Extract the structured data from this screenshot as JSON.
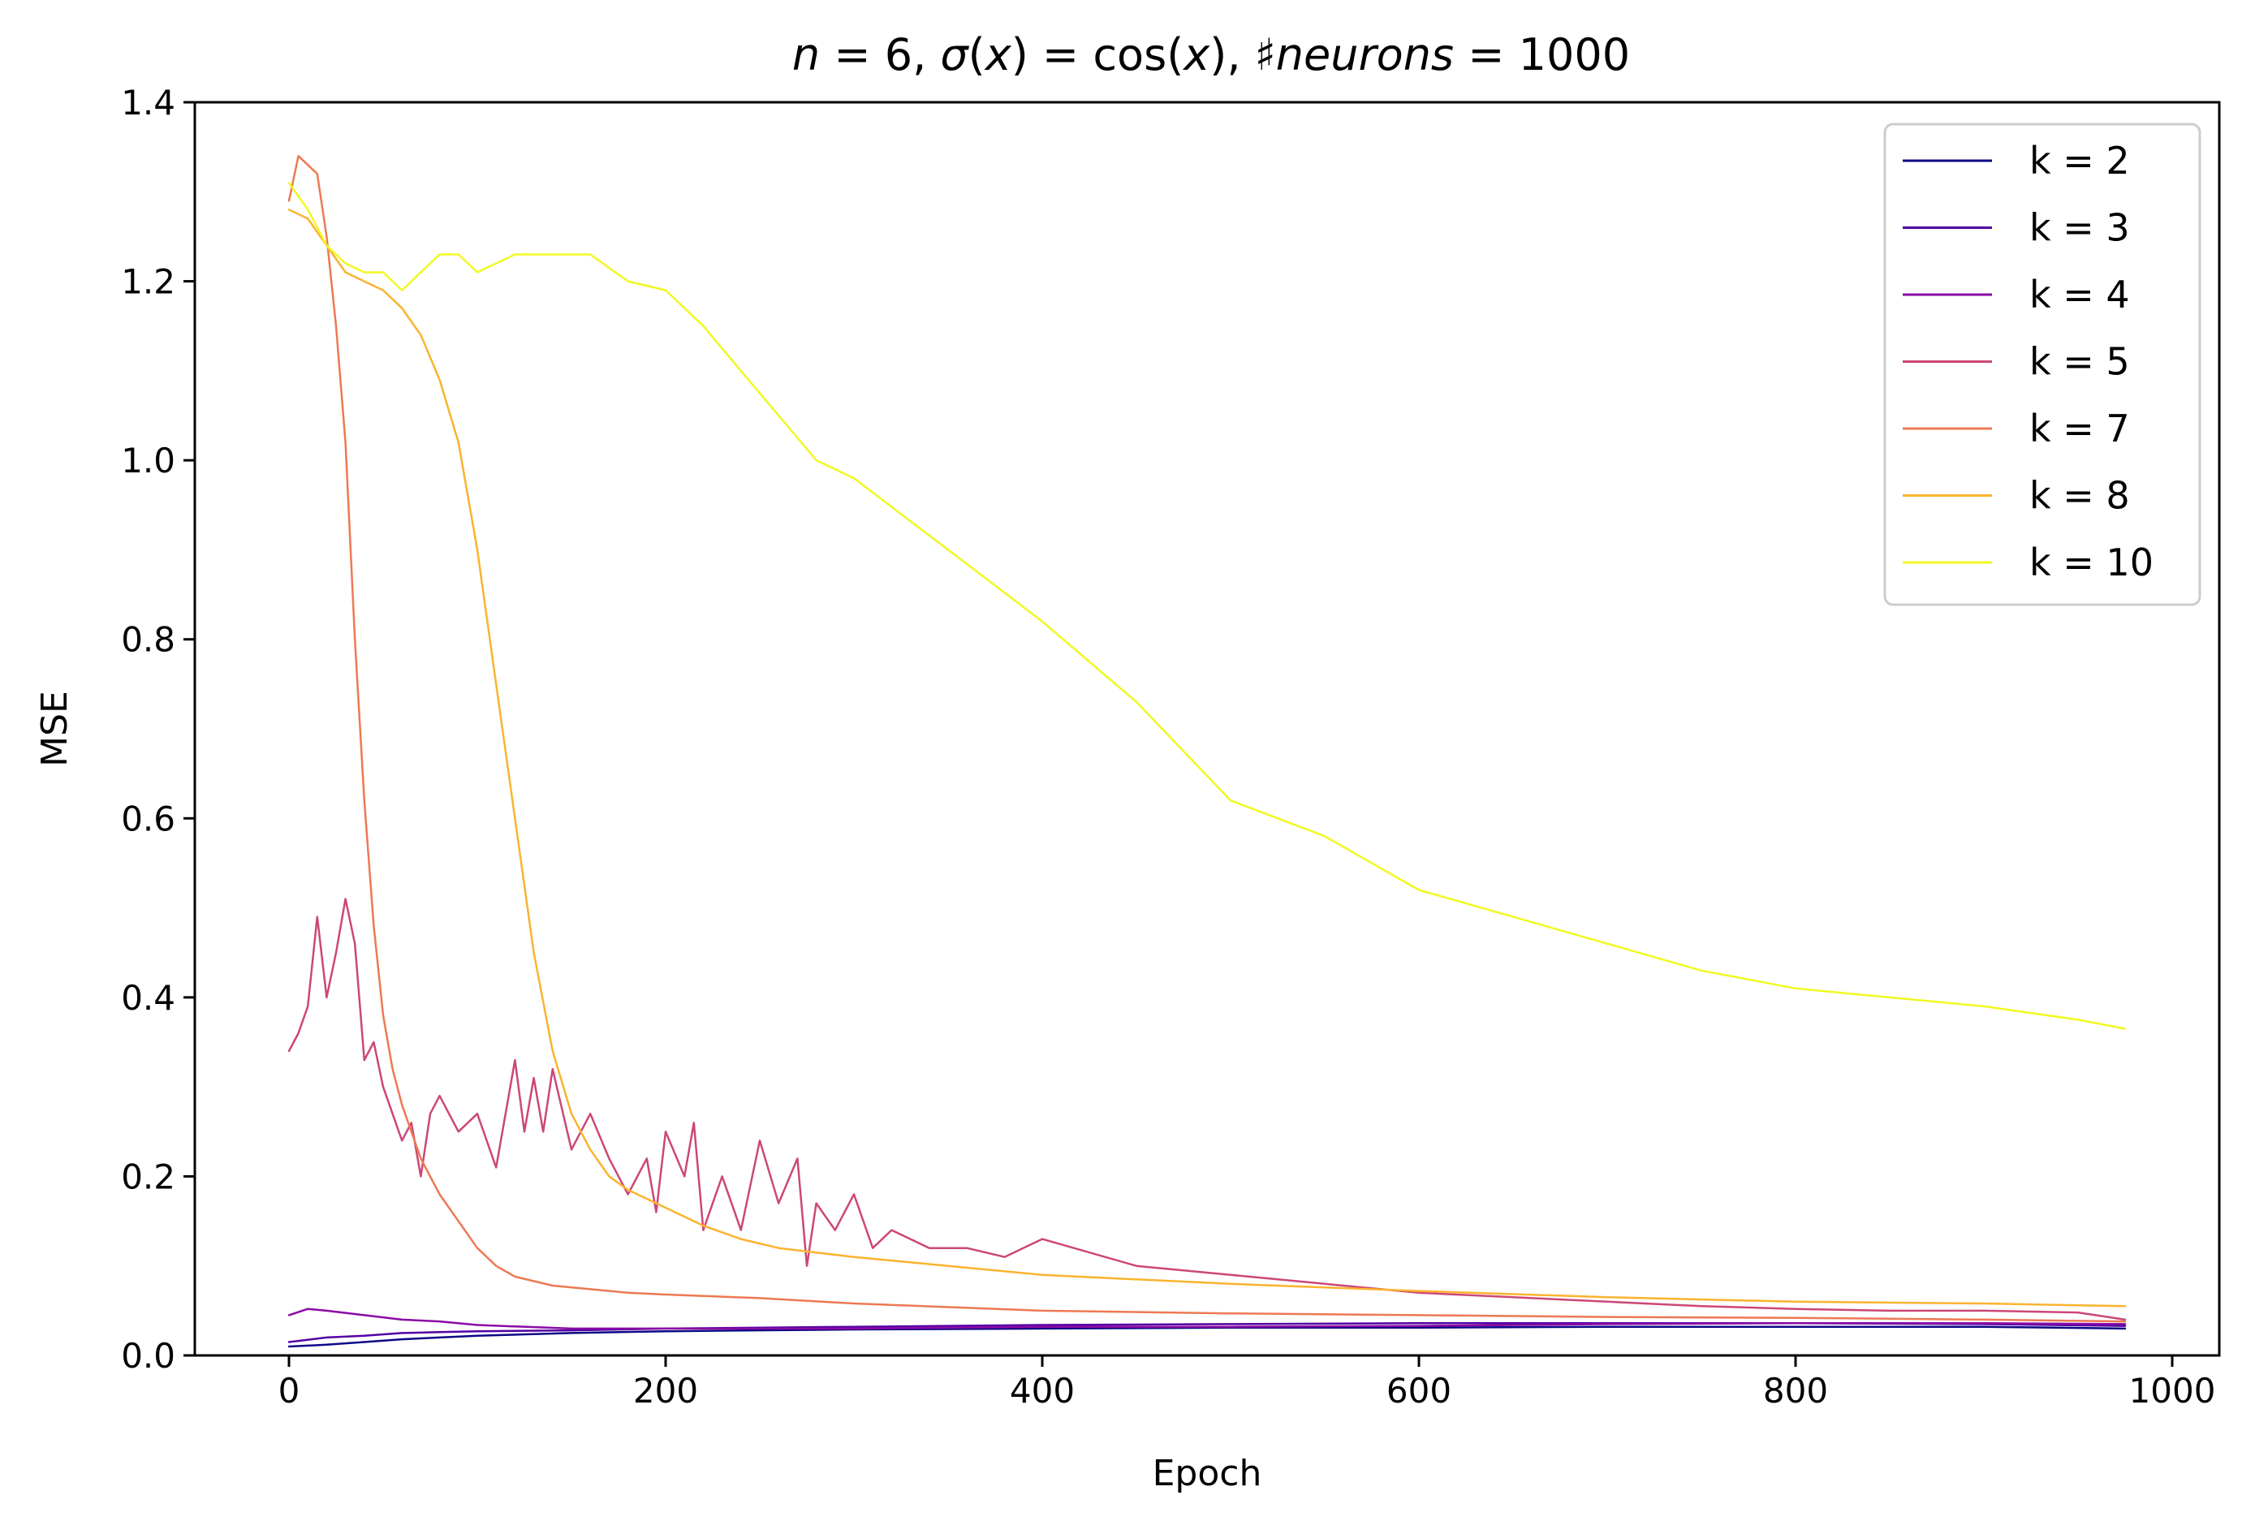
{
  "chart_data": {
    "type": "line",
    "title": "n = 6, σ(x) = cos(x), ♯neurons = 1000",
    "title_parts": {
      "n_var": "n",
      "n_eq": " = 6, ",
      "sigma": "σ",
      "x_open": "(",
      "x_var": "x",
      "x_mid": ") = cos(",
      "x_var2": "x",
      "x_close": "), ♯",
      "neurons_var": "neurons",
      "neurons_eq": " = 1000"
    },
    "xlabel": "Epoch",
    "ylabel": "MSE",
    "xlim": [
      -50,
      1025
    ],
    "ylim": [
      0.0,
      1.4
    ],
    "x_ticks": [
      0,
      200,
      400,
      600,
      800,
      1000
    ],
    "y_ticks": [
      0.0,
      0.2,
      0.4,
      0.6,
      0.8,
      1.0,
      1.2,
      1.4
    ],
    "x_tick_labels": [
      "0",
      "200",
      "400",
      "600",
      "800",
      "1000"
    ],
    "y_tick_labels": [
      "0.0",
      "0.2",
      "0.4",
      "0.6",
      "0.8",
      "1.0",
      "1.2",
      "1.4"
    ],
    "grid": false,
    "legend_position": "top-right",
    "series": [
      {
        "name": "k = 2",
        "color": "#0d0887",
        "x": [
          0,
          20,
          40,
          60,
          80,
          100,
          150,
          200,
          300,
          400,
          500,
          600,
          700,
          800,
          900,
          975
        ],
        "y": [
          0.01,
          0.012,
          0.015,
          0.018,
          0.02,
          0.022,
          0.025,
          0.027,
          0.029,
          0.03,
          0.031,
          0.031,
          0.032,
          0.032,
          0.032,
          0.03
        ]
      },
      {
        "name": "k = 3",
        "color": "#5302a3",
        "x": [
          0,
          20,
          40,
          60,
          80,
          100,
          150,
          200,
          300,
          400,
          500,
          600,
          700,
          800,
          900,
          975
        ],
        "y": [
          0.015,
          0.02,
          0.022,
          0.025,
          0.026,
          0.027,
          0.028,
          0.03,
          0.032,
          0.034,
          0.035,
          0.036,
          0.036,
          0.036,
          0.035,
          0.033
        ]
      },
      {
        "name": "k = 4",
        "color": "#8b0aa5",
        "x": [
          0,
          10,
          20,
          40,
          60,
          80,
          100,
          150,
          200,
          300,
          400,
          500,
          600,
          700,
          800,
          900,
          975
        ],
        "y": [
          0.045,
          0.052,
          0.05,
          0.045,
          0.04,
          0.038,
          0.034,
          0.03,
          0.03,
          0.03,
          0.032,
          0.032,
          0.033,
          0.035,
          0.036,
          0.036,
          0.035
        ]
      },
      {
        "name": "k = 5",
        "color": "#cc4778",
        "x": [
          0,
          5,
          10,
          15,
          20,
          25,
          30,
          35,
          40,
          45,
          50,
          55,
          60,
          65,
          70,
          75,
          80,
          90,
          100,
          110,
          120,
          125,
          130,
          135,
          140,
          150,
          160,
          170,
          180,
          190,
          195,
          200,
          210,
          215,
          220,
          230,
          240,
          250,
          260,
          270,
          275,
          280,
          290,
          300,
          310,
          320,
          340,
          360,
          380,
          400,
          450,
          500,
          550,
          600,
          650,
          700,
          750,
          800,
          850,
          900,
          950,
          975
        ],
        "y": [
          0.34,
          0.36,
          0.39,
          0.49,
          0.4,
          0.45,
          0.51,
          0.46,
          0.33,
          0.35,
          0.3,
          0.27,
          0.24,
          0.26,
          0.2,
          0.27,
          0.29,
          0.25,
          0.27,
          0.21,
          0.33,
          0.25,
          0.31,
          0.25,
          0.32,
          0.23,
          0.27,
          0.22,
          0.18,
          0.22,
          0.16,
          0.25,
          0.2,
          0.26,
          0.14,
          0.2,
          0.14,
          0.24,
          0.17,
          0.22,
          0.1,
          0.17,
          0.14,
          0.18,
          0.12,
          0.14,
          0.12,
          0.12,
          0.11,
          0.13,
          0.1,
          0.09,
          0.08,
          0.07,
          0.065,
          0.06,
          0.055,
          0.052,
          0.05,
          0.05,
          0.048,
          0.04
        ]
      },
      {
        "name": "k = 7",
        "color": "#ed7953",
        "x": [
          0,
          5,
          10,
          15,
          20,
          25,
          30,
          35,
          40,
          45,
          50,
          55,
          60,
          65,
          70,
          80,
          90,
          100,
          110,
          120,
          140,
          160,
          180,
          200,
          250,
          300,
          400,
          500,
          600,
          700,
          800,
          900,
          975
        ],
        "y": [
          1.29,
          1.34,
          1.33,
          1.32,
          1.25,
          1.15,
          1.02,
          0.8,
          0.62,
          0.48,
          0.38,
          0.32,
          0.28,
          0.25,
          0.22,
          0.18,
          0.15,
          0.12,
          0.1,
          0.088,
          0.078,
          0.074,
          0.07,
          0.068,
          0.064,
          0.058,
          0.05,
          0.047,
          0.045,
          0.043,
          0.042,
          0.04,
          0.038
        ]
      },
      {
        "name": "k = 8",
        "color": "#fbb32f",
        "x": [
          0,
          10,
          20,
          30,
          40,
          50,
          60,
          70,
          80,
          90,
          100,
          110,
          120,
          130,
          140,
          150,
          160,
          170,
          180,
          190,
          200,
          220,
          240,
          260,
          280,
          300,
          350,
          400,
          450,
          500,
          600,
          700,
          800,
          900,
          975
        ],
        "y": [
          1.28,
          1.27,
          1.24,
          1.21,
          1.2,
          1.19,
          1.17,
          1.14,
          1.09,
          1.02,
          0.9,
          0.75,
          0.6,
          0.45,
          0.34,
          0.27,
          0.23,
          0.2,
          0.185,
          0.175,
          0.165,
          0.145,
          0.13,
          0.12,
          0.115,
          0.11,
          0.1,
          0.09,
          0.085,
          0.08,
          0.072,
          0.065,
          0.06,
          0.058,
          0.055
        ]
      },
      {
        "name": "k = 10",
        "color": "#f0f921",
        "x": [
          0,
          10,
          20,
          30,
          40,
          50,
          60,
          70,
          80,
          90,
          100,
          120,
          140,
          160,
          180,
          200,
          220,
          240,
          260,
          280,
          300,
          350,
          400,
          450,
          500,
          550,
          600,
          650,
          700,
          750,
          800,
          850,
          900,
          950,
          975
        ],
        "y": [
          1.31,
          1.28,
          1.24,
          1.22,
          1.21,
          1.21,
          1.19,
          1.21,
          1.23,
          1.23,
          1.21,
          1.23,
          1.23,
          1.23,
          1.2,
          1.19,
          1.15,
          1.1,
          1.05,
          1.0,
          0.98,
          0.9,
          0.82,
          0.73,
          0.62,
          0.58,
          0.52,
          0.49,
          0.46,
          0.43,
          0.41,
          0.4,
          0.39,
          0.375,
          0.365
        ]
      }
    ]
  }
}
